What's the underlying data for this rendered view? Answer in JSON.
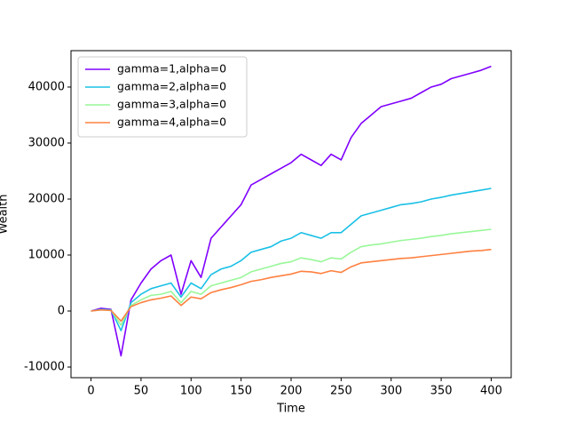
{
  "chart_data": {
    "type": "line",
    "x_label": "Time",
    "y_label": "Wealth",
    "x": [
      0,
      10,
      20,
      30,
      40,
      50,
      60,
      70,
      80,
      90,
      100,
      110,
      120,
      130,
      140,
      150,
      160,
      170,
      180,
      190,
      200,
      210,
      220,
      230,
      240,
      250,
      260,
      270,
      280,
      290,
      300,
      310,
      320,
      330,
      340,
      350,
      360,
      370,
      380,
      390,
      400
    ],
    "series": [
      {
        "name": "gamma=1,alpha=0",
        "color": "#8000ff",
        "values": [
          0,
          500,
          300,
          -8000,
          2000,
          5000,
          7500,
          9000,
          10000,
          3000,
          9000,
          6000,
          13000,
          15000,
          17000,
          19000,
          22500,
          23500,
          24500,
          25500,
          26500,
          28000,
          27000,
          26000,
          28000,
          27000,
          31000,
          33500,
          35000,
          36500,
          37000,
          37500,
          38000,
          39000,
          40000,
          40500,
          41500,
          42000,
          42500,
          43000,
          43700
        ]
      },
      {
        "name": "gamma=2,alpha=0",
        "color": "#1ac0e6",
        "values": [
          0,
          300,
          200,
          -3500,
          1500,
          3000,
          4000,
          4500,
          5000,
          2500,
          5000,
          4000,
          6500,
          7500,
          8000,
          9000,
          10500,
          11000,
          11500,
          12500,
          13000,
          14000,
          13500,
          13000,
          14000,
          14000,
          15500,
          17000,
          17500,
          18000,
          18500,
          19000,
          19200,
          19500,
          20000,
          20300,
          20700,
          21000,
          21300,
          21600,
          21900
        ]
      },
      {
        "name": "gamma=3,alpha=0",
        "color": "#99f799",
        "values": [
          0,
          200,
          100,
          -2500,
          1000,
          2000,
          2800,
          3000,
          3500,
          1500,
          3500,
          3000,
          4500,
          5000,
          5500,
          6000,
          7000,
          7500,
          8000,
          8500,
          8800,
          9500,
          9200,
          8800,
          9500,
          9300,
          10500,
          11500,
          11800,
          12000,
          12300,
          12600,
          12800,
          13000,
          13300,
          13500,
          13800,
          14000,
          14200,
          14400,
          14600
        ]
      },
      {
        "name": "gamma=4,alpha=0",
        "color": "#ff8040",
        "values": [
          0,
          200,
          100,
          -1800,
          800,
          1500,
          2000,
          2300,
          2700,
          1000,
          2500,
          2200,
          3300,
          3800,
          4200,
          4700,
          5300,
          5600,
          6000,
          6300,
          6600,
          7100,
          7000,
          6700,
          7200,
          6900,
          7900,
          8600,
          8800,
          9000,
          9200,
          9400,
          9500,
          9700,
          9900,
          10100,
          10300,
          10500,
          10700,
          10800,
          11000
        ]
      }
    ],
    "xlim": [
      -20,
      420
    ],
    "xticks": [
      0,
      50,
      100,
      150,
      200,
      250,
      300,
      350,
      400
    ],
    "ylim": [
      -11900,
      46500
    ],
    "yticks": [
      -10000,
      0,
      10000,
      20000,
      30000,
      40000
    ],
    "legend": "upper left",
    "grid": false
  }
}
